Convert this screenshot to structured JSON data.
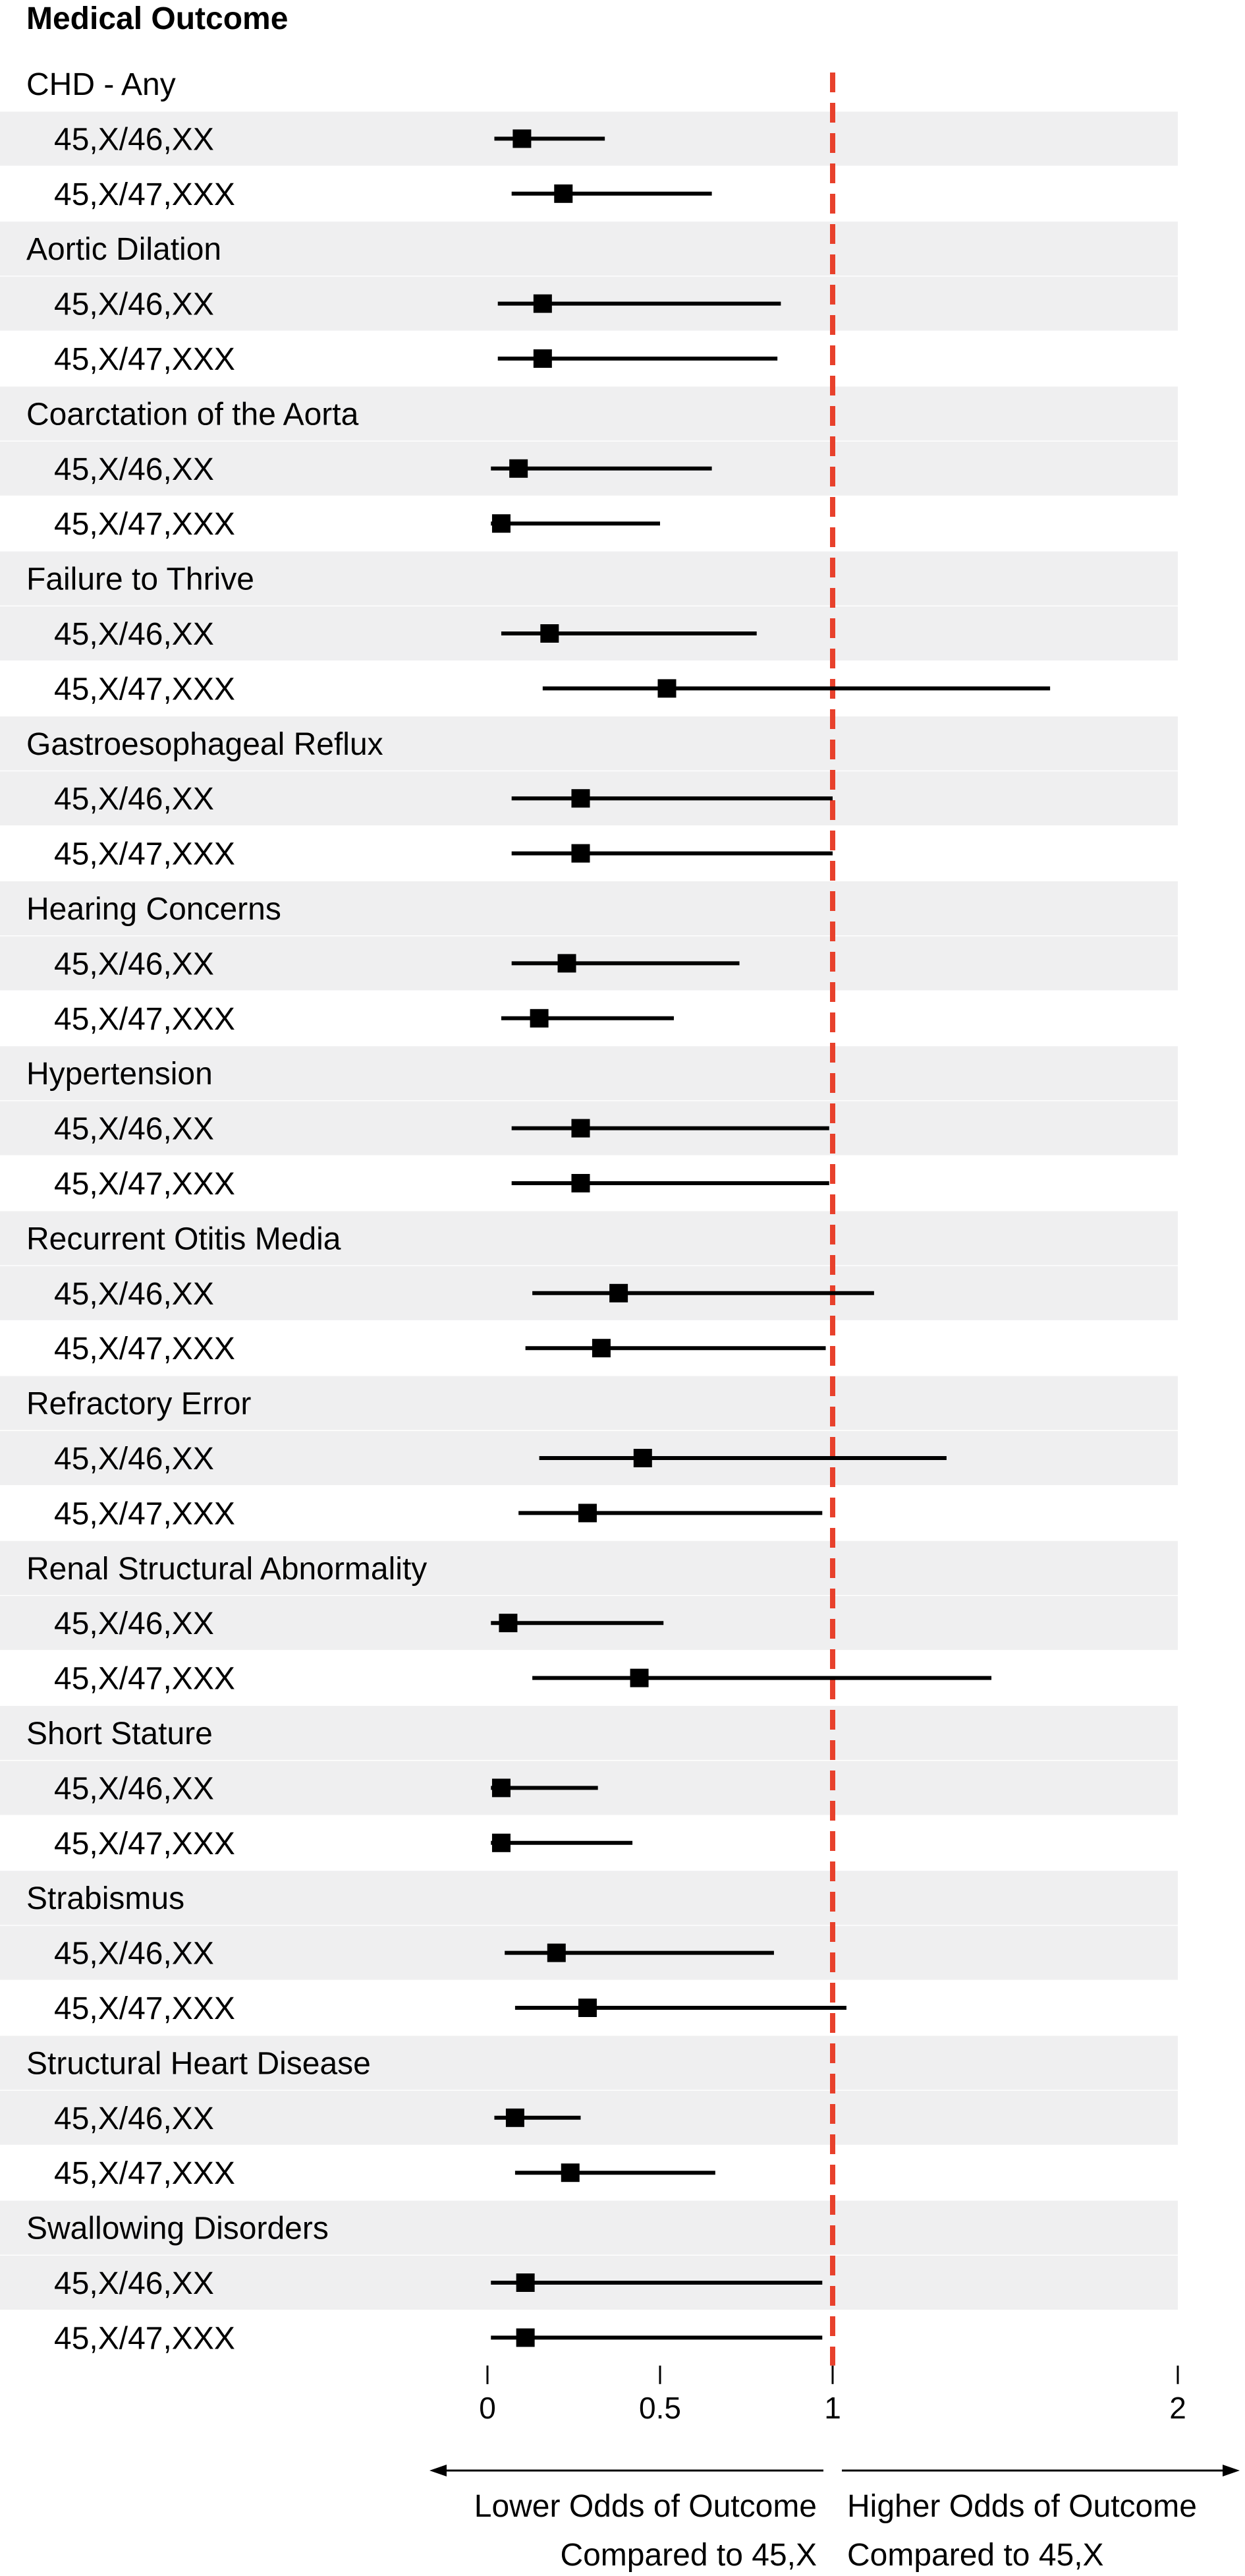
{
  "chart_data": {
    "type": "forest",
    "title": "Medical Outcome",
    "reference_value": 1,
    "xlim": [
      0,
      2
    ],
    "x_ticks": [
      {
        "value": 0,
        "label": "0"
      },
      {
        "value": 0.5,
        "label": "0.5"
      },
      {
        "value": 1,
        "label": "1"
      },
      {
        "value": 2,
        "label": "2"
      }
    ],
    "x_axis": "piecewise: 0–1 spans same width as 1–2",
    "marker": "square",
    "colors": {
      "reference_line": "#e8412c",
      "band": "#efeff0",
      "ink": "#000000"
    },
    "direction_labels": {
      "left": {
        "line1": "Lower Odds of Outcome",
        "line2": "Compared to 45,X"
      },
      "right": {
        "line1": "Higher Odds of Outcome",
        "line2": "Compared to 45,X"
      }
    },
    "groups": [
      {
        "name": "CHD - Any",
        "rows": [
          {
            "label": "45,X/46,XX",
            "estimate": 0.1,
            "lower": 0.02,
            "upper": 0.34
          },
          {
            "label": "45,X/47,XXX",
            "estimate": 0.22,
            "lower": 0.07,
            "upper": 0.65
          }
        ]
      },
      {
        "name": "Aortic Dilation",
        "rows": [
          {
            "label": "45,X/46,XX",
            "estimate": 0.16,
            "lower": 0.03,
            "upper": 0.85
          },
          {
            "label": "45,X/47,XXX",
            "estimate": 0.16,
            "lower": 0.03,
            "upper": 0.84
          }
        ]
      },
      {
        "name": "Coarctation of the Aorta",
        "rows": [
          {
            "label": "45,X/46,XX",
            "estimate": 0.09,
            "lower": 0.01,
            "upper": 0.65
          },
          {
            "label": "45,X/47,XXX",
            "estimate": 0.04,
            "lower": 0.01,
            "upper": 0.5
          }
        ]
      },
      {
        "name": "Failure to Thrive",
        "rows": [
          {
            "label": "45,X/46,XX",
            "estimate": 0.18,
            "lower": 0.04,
            "upper": 0.78
          },
          {
            "label": "45,X/47,XXX",
            "estimate": 0.52,
            "lower": 0.16,
            "upper": 1.63
          }
        ]
      },
      {
        "name": "Gastroesophageal Reflux",
        "rows": [
          {
            "label": "45,X/46,XX",
            "estimate": 0.27,
            "lower": 0.07,
            "upper": 1.0
          },
          {
            "label": "45,X/47,XXX",
            "estimate": 0.27,
            "lower": 0.07,
            "upper": 1.0
          }
        ]
      },
      {
        "name": "Hearing Concerns",
        "rows": [
          {
            "label": "45,X/46,XX",
            "estimate": 0.23,
            "lower": 0.07,
            "upper": 0.73
          },
          {
            "label": "45,X/47,XXX",
            "estimate": 0.15,
            "lower": 0.04,
            "upper": 0.54
          }
        ]
      },
      {
        "name": "Hypertension",
        "rows": [
          {
            "label": "45,X/46,XX",
            "estimate": 0.27,
            "lower": 0.07,
            "upper": 0.99
          },
          {
            "label": "45,X/47,XXX",
            "estimate": 0.27,
            "lower": 0.07,
            "upper": 0.99
          }
        ]
      },
      {
        "name": "Recurrent Otitis Media",
        "rows": [
          {
            "label": "45,X/46,XX",
            "estimate": 0.38,
            "lower": 0.13,
            "upper": 1.12
          },
          {
            "label": "45,X/47,XXX",
            "estimate": 0.33,
            "lower": 0.11,
            "upper": 0.98
          }
        ]
      },
      {
        "name": "Refractory Error",
        "rows": [
          {
            "label": "45,X/46,XX",
            "estimate": 0.45,
            "lower": 0.15,
            "upper": 1.33
          },
          {
            "label": "45,X/47,XXX",
            "estimate": 0.29,
            "lower": 0.09,
            "upper": 0.97
          }
        ]
      },
      {
        "name": "Renal Structural Abnormality",
        "rows": [
          {
            "label": "45,X/46,XX",
            "estimate": 0.06,
            "lower": 0.01,
            "upper": 0.51
          },
          {
            "label": "45,X/47,XXX",
            "estimate": 0.44,
            "lower": 0.13,
            "upper": 1.46
          }
        ]
      },
      {
        "name": "Short Stature",
        "rows": [
          {
            "label": "45,X/46,XX",
            "estimate": 0.04,
            "lower": 0.01,
            "upper": 0.32
          },
          {
            "label": "45,X/47,XXX",
            "estimate": 0.04,
            "lower": 0.01,
            "upper": 0.42
          }
        ]
      },
      {
        "name": "Strabismus",
        "rows": [
          {
            "label": "45,X/46,XX",
            "estimate": 0.2,
            "lower": 0.05,
            "upper": 0.83
          },
          {
            "label": "45,X/47,XXX",
            "estimate": 0.29,
            "lower": 0.08,
            "upper": 1.04
          }
        ]
      },
      {
        "name": "Structural Heart Disease",
        "rows": [
          {
            "label": "45,X/46,XX",
            "estimate": 0.08,
            "lower": 0.02,
            "upper": 0.27
          },
          {
            "label": "45,X/47,XXX",
            "estimate": 0.24,
            "lower": 0.08,
            "upper": 0.66
          }
        ]
      },
      {
        "name": "Swallowing Disorders",
        "rows": [
          {
            "label": "45,X/46,XX",
            "estimate": 0.11,
            "lower": 0.01,
            "upper": 0.97
          },
          {
            "label": "45,X/47,XXX",
            "estimate": 0.11,
            "lower": 0.01,
            "upper": 0.97
          }
        ]
      }
    ]
  }
}
